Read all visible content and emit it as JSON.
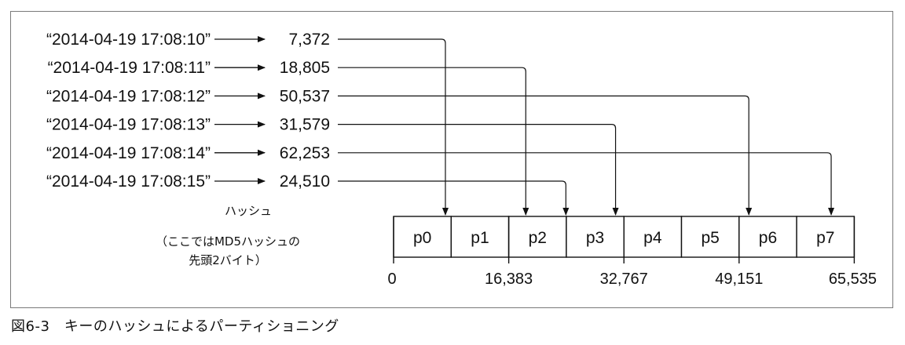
{
  "rows": [
    {
      "key": "“2014-04-19 17:08:10”",
      "hash": "7,372",
      "partition": 0
    },
    {
      "key": "“2014-04-19 17:08:11”",
      "hash": "18,805",
      "partition": 2
    },
    {
      "key": "“2014-04-19 17:08:12”",
      "hash": "50,537",
      "partition": 6
    },
    {
      "key": "“2014-04-19 17:08:13”",
      "hash": "31,579",
      "partition": 3
    },
    {
      "key": "“2014-04-19 17:08:14”",
      "hash": "62,253",
      "partition": 7
    },
    {
      "key": "“2014-04-19 17:08:15”",
      "hash": "24,510",
      "partition": 2
    }
  ],
  "partitions": [
    "p0",
    "p1",
    "p2",
    "p3",
    "p4",
    "p5",
    "p6",
    "p7"
  ],
  "axis_labels": [
    "0",
    "16,383",
    "32,767",
    "49,151",
    "65,535"
  ],
  "hash_note": [
    "ハッシュ",
    "（ここではMD5ハッシュの",
    "先頭2バイト）"
  ],
  "caption": "図6-3　キーのハッシュによるパーティショニング"
}
